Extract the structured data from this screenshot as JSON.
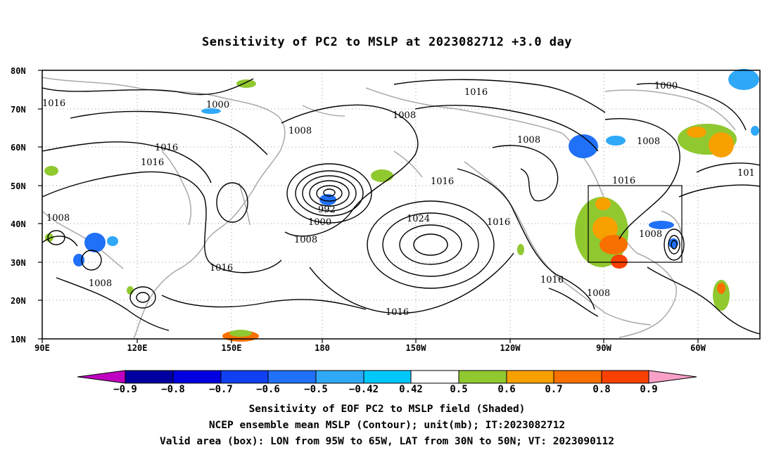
{
  "title": "Sensitivity of PC2 to MSLP at 2023082712 +3.0 day",
  "map": {
    "lon_labels": [
      "90E",
      "120E",
      "150E",
      "180",
      "150W",
      "120W",
      "90W",
      "60W"
    ],
    "lat_labels": [
      "80N",
      "70N",
      "60N",
      "50N",
      "40N",
      "30N",
      "20N",
      "10N"
    ],
    "extent": {
      "lon_min": "90E",
      "lon_max": "40W",
      "lat_min": "10N",
      "lat_max": "80N"
    },
    "valid_box": {
      "lon_from": "95W",
      "lon_to": "65W",
      "lat_from": "30N",
      "lat_to": "50N"
    },
    "contour_labels": [
      "1016",
      "1000",
      "1016",
      "1008",
      "1000",
      "1008",
      "1008",
      "1016",
      "1016",
      "992",
      "1000",
      "1008",
      "1016",
      "1024",
      "1016",
      "1016",
      "1016",
      "1008",
      "1008",
      "1008",
      "1008",
      "1016",
      "101"
    ],
    "colors": {
      "contour": "#000000",
      "coastline": "#a9a9a9",
      "grid": "#999999"
    }
  },
  "colorbar": {
    "labels": [
      "−0.9",
      "−0.8",
      "−0.7",
      "−0.6",
      "−0.5",
      "−0.42",
      "0.42",
      "0.5",
      "0.6",
      "0.7",
      "0.8",
      "0.9"
    ],
    "colors": [
      "#c000c0",
      "#0000a0",
      "#0000e0",
      "#1040f0",
      "#2070f8",
      "#30a8f8",
      "#00c8ff",
      "#ffffff",
      "#90c830",
      "#f8a000",
      "#f87000",
      "#f84000",
      "#f00000",
      "#f8a0c8"
    ]
  },
  "captions": {
    "line1": "Sensitivity of EOF PC2 to MSLP field (Shaded)",
    "line2": "NCEP ensemble mean MSLP (Contour); unit(mb); IT:2023082712",
    "line3": "Valid area (box): LON from 95W to 65W, LAT from 30N to 50N; VT: 2023090112"
  }
}
